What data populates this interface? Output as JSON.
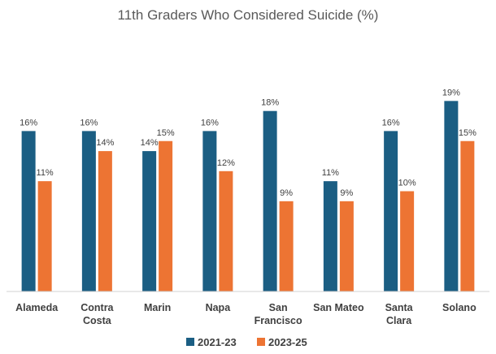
{
  "chart_data": {
    "type": "bar",
    "title": "11th Graders Who Considered Suicide (%)",
    "xlabel": "",
    "ylabel": "",
    "ylim": [
      0,
      22
    ],
    "grid": false,
    "legend_position": "bottom",
    "categories": [
      [
        "Alameda"
      ],
      [
        "Contra",
        "Costa"
      ],
      [
        "Marin"
      ],
      [
        "Napa"
      ],
      [
        "San",
        "Francisco"
      ],
      [
        "San Mateo"
      ],
      [
        "Santa",
        "Clara"
      ],
      [
        "Solano"
      ]
    ],
    "series": [
      {
        "name": "2021-23",
        "color": "#1b5e83",
        "values": [
          16,
          16,
          14,
          16,
          18,
          11,
          16,
          19
        ],
        "labels": [
          "16%",
          "16%",
          "14%",
          "16%",
          "18%",
          "11%",
          "16%",
          "19%"
        ]
      },
      {
        "name": "2023-25",
        "color": "#ed7433",
        "values": [
          11,
          14,
          15,
          12,
          9,
          9,
          10,
          15
        ],
        "labels": [
          "11%",
          "14%",
          "15%",
          "12%",
          "9%",
          "9%",
          "10%",
          "15%"
        ]
      }
    ]
  }
}
